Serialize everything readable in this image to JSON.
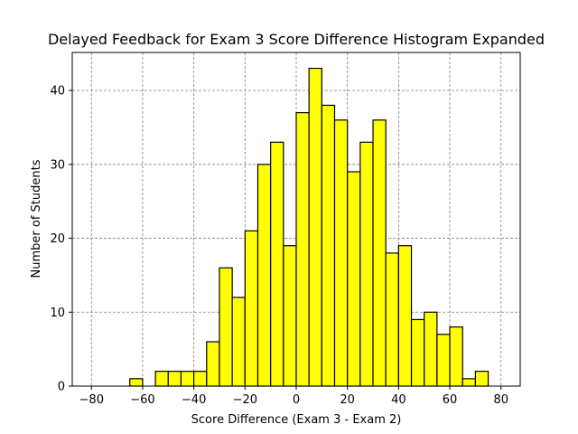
{
  "chart_data": {
    "type": "bar",
    "title": "Delayed Feedback for Exam 3 Score Difference Histogram Expanded",
    "xlabel": "Score Difference (Exam 3 - Exam 2)",
    "ylabel": "Number of Students",
    "xlim": [
      -87.5,
      87.5
    ],
    "ylim": [
      0,
      45.15
    ],
    "bin_width": 5,
    "grid": true,
    "bar_color": "#ffff00",
    "edge_color": "#000000",
    "bins": [
      {
        "left": -80,
        "right": -75,
        "count": 0
      },
      {
        "left": -75,
        "right": -70,
        "count": 0
      },
      {
        "left": -70,
        "right": -65,
        "count": 0
      },
      {
        "left": -65,
        "right": -60,
        "count": 1
      },
      {
        "left": -60,
        "right": -55,
        "count": 0
      },
      {
        "left": -55,
        "right": -50,
        "count": 2
      },
      {
        "left": -50,
        "right": -45,
        "count": 2
      },
      {
        "left": -45,
        "right": -40,
        "count": 2
      },
      {
        "left": -40,
        "right": -35,
        "count": 2
      },
      {
        "left": -35,
        "right": -30,
        "count": 6
      },
      {
        "left": -30,
        "right": -25,
        "count": 16
      },
      {
        "left": -25,
        "right": -20,
        "count": 12
      },
      {
        "left": -20,
        "right": -15,
        "count": 21
      },
      {
        "left": -15,
        "right": -10,
        "count": 30
      },
      {
        "left": -10,
        "right": -5,
        "count": 33
      },
      {
        "left": -5,
        "right": 0,
        "count": 19
      },
      {
        "left": 0,
        "right": 5,
        "count": 37
      },
      {
        "left": 5,
        "right": 10,
        "count": 43
      },
      {
        "left": 10,
        "right": 15,
        "count": 38
      },
      {
        "left": 15,
        "right": 20,
        "count": 36
      },
      {
        "left": 20,
        "right": 25,
        "count": 29
      },
      {
        "left": 25,
        "right": 30,
        "count": 33
      },
      {
        "left": 30,
        "right": 35,
        "count": 36
      },
      {
        "left": 35,
        "right": 40,
        "count": 18
      },
      {
        "left": 40,
        "right": 45,
        "count": 19
      },
      {
        "left": 45,
        "right": 50,
        "count": 9
      },
      {
        "left": 50,
        "right": 55,
        "count": 10
      },
      {
        "left": 55,
        "right": 60,
        "count": 7
      },
      {
        "left": 60,
        "right": 65,
        "count": 8
      },
      {
        "left": 65,
        "right": 70,
        "count": 1
      },
      {
        "left": 70,
        "right": 75,
        "count": 2
      },
      {
        "left": 75,
        "right": 80,
        "count": 0
      }
    ],
    "x_ticks": [
      {
        "value": -80,
        "label": "−80"
      },
      {
        "value": -60,
        "label": "−60"
      },
      {
        "value": -40,
        "label": "−40"
      },
      {
        "value": -20,
        "label": "−20"
      },
      {
        "value": 0,
        "label": "0"
      },
      {
        "value": 20,
        "label": "20"
      },
      {
        "value": 40,
        "label": "40"
      },
      {
        "value": 60,
        "label": "60"
      },
      {
        "value": 80,
        "label": "80"
      }
    ],
    "y_ticks": [
      {
        "value": 0,
        "label": "0"
      },
      {
        "value": 10,
        "label": "10"
      },
      {
        "value": 20,
        "label": "20"
      },
      {
        "value": 30,
        "label": "30"
      },
      {
        "value": 40,
        "label": "40"
      }
    ]
  }
}
